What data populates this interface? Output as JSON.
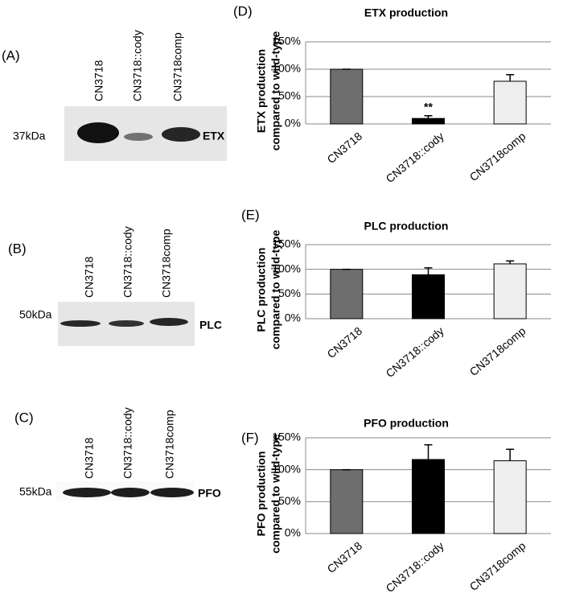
{
  "blots": [
    {
      "panel": "(A)",
      "lanes": [
        "CN3718",
        "CN3718::cody",
        "CN3718comp"
      ],
      "marker": "37kDa",
      "protein": "ETX"
    },
    {
      "panel": "(B)",
      "lanes": [
        "CN3718",
        "CN3718::cody",
        "CN3718comp"
      ],
      "marker": "50kDa",
      "protein": "PLC"
    },
    {
      "panel": "(C)",
      "lanes": [
        "CN3718",
        "CN3718::cody",
        "CN3718comp"
      ],
      "marker": "55kDa",
      "protein": "PFO"
    }
  ],
  "chart_data": [
    {
      "type": "bar",
      "panel": "(D)",
      "title": "ETX production",
      "ylabel": [
        "ETX production",
        "compared to wild-type"
      ],
      "categories": [
        "CN3718",
        "CN3718::cody",
        "CN3718comp"
      ],
      "values": [
        100,
        10,
        78
      ],
      "errors": [
        0,
        5,
        12
      ],
      "value_annotations": [
        null,
        "**",
        null
      ],
      "colors": [
        "#6e6e6e",
        "#000000",
        "#eeeeee"
      ],
      "ylim": [
        0,
        150
      ],
      "yticks": [
        {
          "value": 0,
          "label": "0%"
        },
        {
          "value": 50,
          "label": "50%"
        },
        {
          "value": 100,
          "label": "100%"
        },
        {
          "value": 150,
          "label": "150%"
        }
      ],
      "grid": true
    },
    {
      "type": "bar",
      "panel": "(E)",
      "title": "PLC production",
      "ylabel": [
        "PLC production",
        "compared to wild-type"
      ],
      "categories": [
        "CN3718",
        "CN3718::cody",
        "CN3718comp"
      ],
      "values": [
        100,
        89,
        111
      ],
      "errors": [
        0,
        14,
        6
      ],
      "colors": [
        "#6e6e6e",
        "#000000",
        "#eeeeee"
      ],
      "ylim": [
        0,
        150
      ],
      "yticks": [
        {
          "value": 0,
          "label": "0%"
        },
        {
          "value": 50,
          "label": "50%"
        },
        {
          "value": 100,
          "label": "100%"
        },
        {
          "value": 150,
          "label": "150%"
        }
      ],
      "grid": true
    },
    {
      "type": "bar",
      "panel": "(F)",
      "title": "PFO production",
      "ylabel": [
        "PFO production",
        "compared to wild-type"
      ],
      "categories": [
        "CN3718",
        "CN3718::cody",
        "CN3718comp"
      ],
      "values": [
        100,
        116,
        114
      ],
      "errors": [
        0,
        23,
        18
      ],
      "colors": [
        "#6e6e6e",
        "#000000",
        "#eeeeee"
      ],
      "ylim": [
        0,
        150
      ],
      "yticks": [
        {
          "value": 0,
          "label": "0%"
        },
        {
          "value": 50,
          "label": "50%"
        },
        {
          "value": 100,
          "label": "100%"
        },
        {
          "value": 150,
          "label": "150%"
        }
      ],
      "grid": true
    }
  ]
}
